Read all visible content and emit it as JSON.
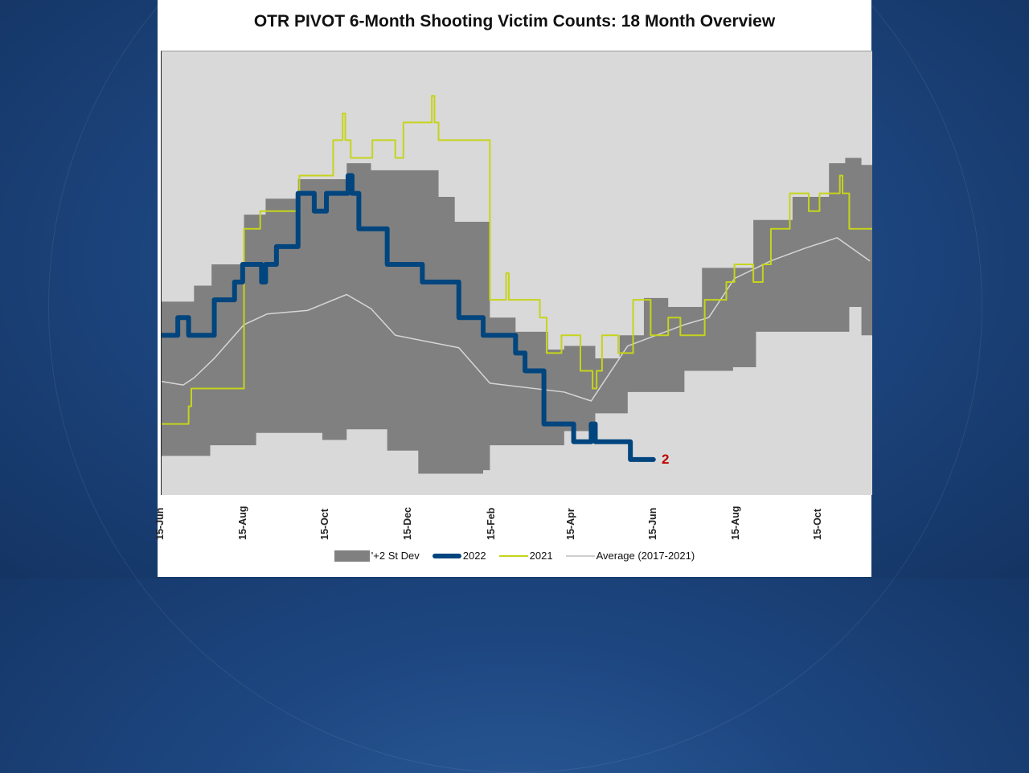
{
  "colors": {
    "band": "#808080",
    "s2022": "#00457e",
    "s2021": "#c5d41a",
    "average": "#d6d6d6",
    "end_label": "#c00000",
    "plot_bg": "#d9d9d9"
  },
  "chart_data": {
    "type": "line",
    "title": "OTR PIVOT 6-Month Shooting Victim Counts: 18 Month Overview",
    "xlabel": "",
    "ylabel": "",
    "x_range": [
      "2021-06-15",
      "2022-11-23"
    ],
    "ylim": [
      0,
      25
    ],
    "grid": false,
    "legend_position": "bottom",
    "x_ticks": [
      {
        "date": "2021-06-15",
        "label": "15-Jun"
      },
      {
        "date": "2021-08-15",
        "label": "15-Aug"
      },
      {
        "date": "2021-10-15",
        "label": "15-Oct"
      },
      {
        "date": "2021-12-15",
        "label": "15-Dec"
      },
      {
        "date": "2022-02-15",
        "label": "15-Feb"
      },
      {
        "date": "2022-04-15",
        "label": "15-Apr"
      },
      {
        "date": "2022-06-15",
        "label": "15-Jun"
      },
      {
        "date": "2022-08-15",
        "label": "15-Aug"
      },
      {
        "date": "2022-10-15",
        "label": "15-Oct"
      }
    ],
    "band": {
      "name": "'+2 St Dev",
      "upper": [
        [
          "2021-06-15",
          10.9
        ],
        [
          "2021-07-09",
          11.8
        ],
        [
          "2021-07-22",
          13
        ],
        [
          "2021-08-15",
          15.8
        ],
        [
          "2021-08-31",
          16.7
        ],
        [
          "2021-09-24",
          17.8
        ],
        [
          "2021-10-30",
          18.7
        ],
        [
          "2021-11-17",
          18.3
        ],
        [
          "2021-12-22",
          18.3
        ],
        [
          "2022-01-06",
          16.8
        ],
        [
          "2022-01-18",
          15.4
        ],
        [
          "2022-02-13",
          10
        ],
        [
          "2022-03-04",
          9.2
        ],
        [
          "2022-03-28",
          8.2
        ],
        [
          "2022-04-09",
          8.4
        ],
        [
          "2022-05-02",
          7.7
        ],
        [
          "2022-05-20",
          9
        ],
        [
          "2022-06-07",
          11.1
        ],
        [
          "2022-06-25",
          10.6
        ],
        [
          "2022-07-20",
          12.8
        ],
        [
          "2022-08-27",
          15.5
        ],
        [
          "2022-09-25",
          16.8
        ],
        [
          "2022-10-22",
          18.7
        ],
        [
          "2022-11-03",
          19
        ],
        [
          "2022-11-15",
          18.6
        ],
        [
          "2022-11-23",
          18.3
        ]
      ],
      "lower": [
        [
          "2021-06-15",
          2.2
        ],
        [
          "2021-07-21",
          2.8
        ],
        [
          "2021-08-24",
          3.5
        ],
        [
          "2021-10-12",
          3.1
        ],
        [
          "2021-10-30",
          3.7
        ],
        [
          "2021-11-29",
          2.5
        ],
        [
          "2021-12-22",
          1.2
        ],
        [
          "2022-02-08",
          1.4
        ],
        [
          "2022-02-13",
          2.8
        ],
        [
          "2022-04-09",
          3.6
        ],
        [
          "2022-05-02",
          4.6
        ],
        [
          "2022-05-26",
          5.8
        ],
        [
          "2022-07-07",
          7
        ],
        [
          "2022-08-12",
          7.2
        ],
        [
          "2022-08-29",
          9.2
        ],
        [
          "2022-11-06",
          10.6
        ],
        [
          "2022-11-15",
          9
        ],
        [
          "2022-11-23",
          8.4
        ]
      ]
    },
    "series": [
      {
        "name": "2022",
        "step": true,
        "end_label": "2",
        "points": [
          [
            "2021-06-15",
            9
          ],
          [
            "2021-06-27",
            10
          ],
          [
            "2021-07-05",
            9
          ],
          [
            "2021-07-24",
            11
          ],
          [
            "2021-08-08",
            12
          ],
          [
            "2021-08-14",
            13
          ],
          [
            "2021-08-28",
            12
          ],
          [
            "2021-08-31",
            13
          ],
          [
            "2021-09-08",
            14
          ],
          [
            "2021-09-24",
            17
          ],
          [
            "2021-10-06",
            16
          ],
          [
            "2021-10-15",
            17
          ],
          [
            "2021-10-31",
            18
          ],
          [
            "2021-11-03",
            17
          ],
          [
            "2021-11-08",
            15
          ],
          [
            "2021-11-29",
            13
          ],
          [
            "2021-12-25",
            12
          ],
          [
            "2022-01-21",
            10
          ],
          [
            "2022-02-08",
            9
          ],
          [
            "2022-03-04",
            8
          ],
          [
            "2022-03-11",
            7
          ],
          [
            "2022-03-25",
            4
          ],
          [
            "2022-04-16",
            3
          ],
          [
            "2022-04-29",
            4
          ],
          [
            "2022-05-02",
            3
          ],
          [
            "2022-05-28",
            2
          ],
          [
            "2022-06-14",
            2
          ]
        ]
      },
      {
        "name": "2021",
        "step": true,
        "points": [
          [
            "2021-06-15",
            4
          ],
          [
            "2021-07-05",
            5
          ],
          [
            "2021-07-07",
            6
          ],
          [
            "2021-08-15",
            15
          ],
          [
            "2021-08-27",
            16
          ],
          [
            "2021-09-25",
            18
          ],
          [
            "2021-10-20",
            20
          ],
          [
            "2021-10-27",
            21.5
          ],
          [
            "2021-10-29",
            20
          ],
          [
            "2021-11-02",
            19
          ],
          [
            "2021-11-18",
            20
          ],
          [
            "2021-12-05",
            19
          ],
          [
            "2021-12-11",
            21
          ],
          [
            "2022-01-01",
            22.5
          ],
          [
            "2022-01-03",
            21
          ],
          [
            "2022-01-06",
            20
          ],
          [
            "2022-02-13",
            11
          ],
          [
            "2022-02-25",
            12.5
          ],
          [
            "2022-02-27",
            11
          ],
          [
            "2022-03-22",
            10
          ],
          [
            "2022-03-27",
            8
          ],
          [
            "2022-04-07",
            9
          ],
          [
            "2022-04-21",
            7
          ],
          [
            "2022-04-30",
            6
          ],
          [
            "2022-05-03",
            7
          ],
          [
            "2022-05-07",
            9
          ],
          [
            "2022-05-19",
            8
          ],
          [
            "2022-05-30",
            11
          ],
          [
            "2022-06-12",
            9
          ],
          [
            "2022-06-25",
            10
          ],
          [
            "2022-07-04",
            9
          ],
          [
            "2022-07-22",
            11
          ],
          [
            "2022-08-07",
            12
          ],
          [
            "2022-08-13",
            13
          ],
          [
            "2022-08-27",
            12
          ],
          [
            "2022-09-03",
            13
          ],
          [
            "2022-09-09",
            15
          ],
          [
            "2022-09-23",
            17
          ],
          [
            "2022-10-07",
            16
          ],
          [
            "2022-10-15",
            17
          ],
          [
            "2022-10-30",
            18
          ],
          [
            "2022-11-01",
            17
          ],
          [
            "2022-11-06",
            15
          ],
          [
            "2022-11-23",
            15
          ]
        ]
      },
      {
        "name": "Average (2017-2021)",
        "step": false,
        "points": [
          [
            "2021-06-15",
            6.4
          ],
          [
            "2021-07-01",
            6.2
          ],
          [
            "2021-07-09",
            6.6
          ],
          [
            "2021-07-24",
            7.7
          ],
          [
            "2021-08-15",
            9.6
          ],
          [
            "2021-09-01",
            10.2
          ],
          [
            "2021-10-01",
            10.4
          ],
          [
            "2021-10-30",
            11.3
          ],
          [
            "2021-11-17",
            10.5
          ],
          [
            "2021-12-05",
            9.0
          ],
          [
            "2022-01-21",
            8.3
          ],
          [
            "2022-02-13",
            6.3
          ],
          [
            "2022-04-09",
            5.8
          ],
          [
            "2022-04-29",
            5.3
          ],
          [
            "2022-05-26",
            8.4
          ],
          [
            "2022-07-07",
            9.6
          ],
          [
            "2022-07-25",
            10.0
          ],
          [
            "2022-08-13",
            12.2
          ],
          [
            "2022-09-09",
            13.2
          ],
          [
            "2022-10-04",
            13.9
          ],
          [
            "2022-10-28",
            14.5
          ],
          [
            "2022-11-21",
            13.2
          ]
        ]
      }
    ]
  }
}
